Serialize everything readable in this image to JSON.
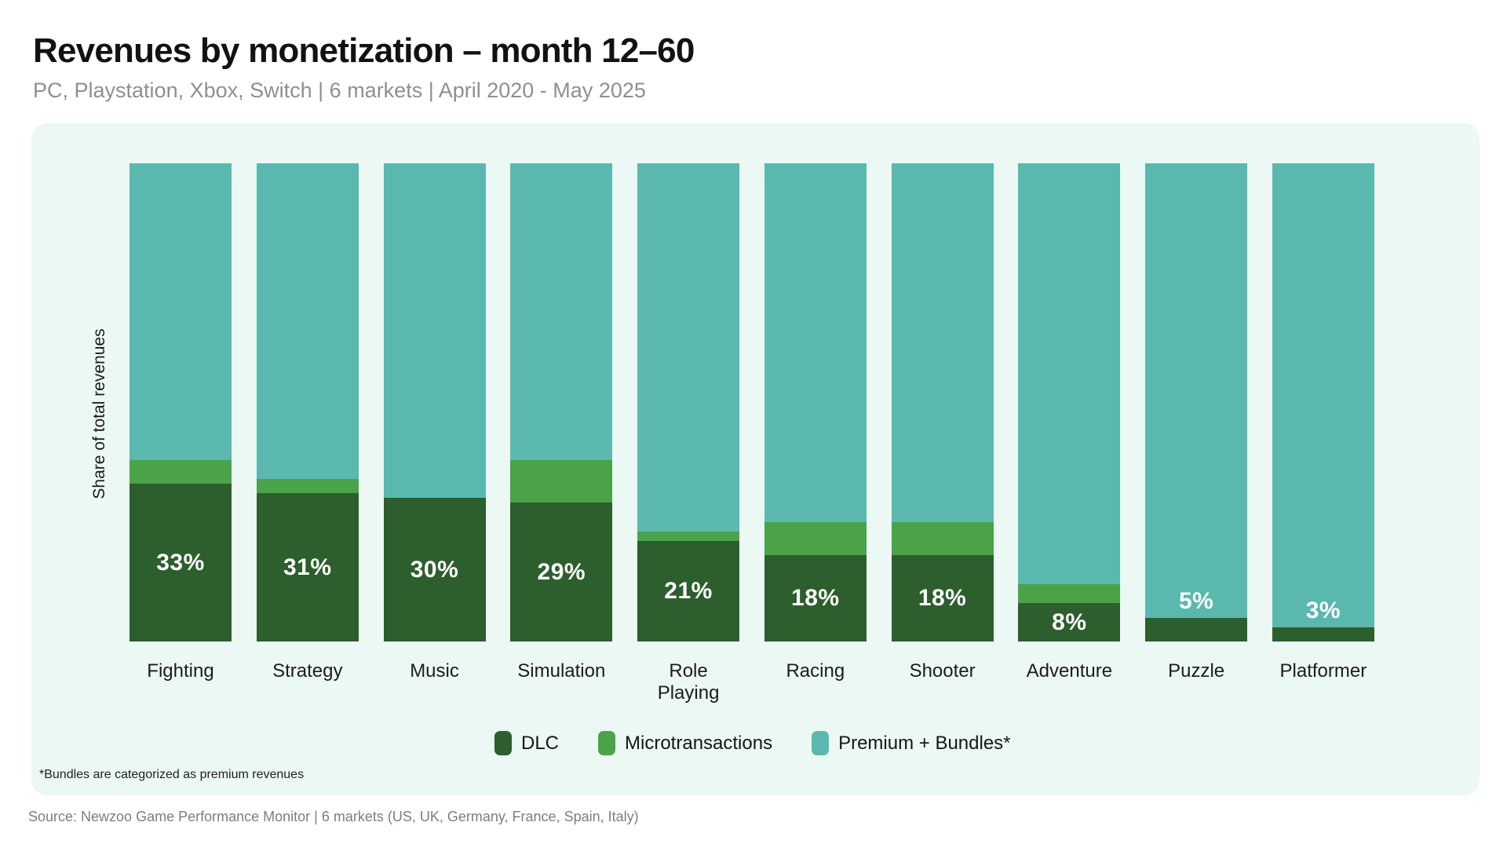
{
  "header": {
    "title": "Revenues by monetization – month 12–60",
    "subtitle": "PC, Playstation, Xbox, Switch | 6 markets | April 2020 - May 2025"
  },
  "colors": {
    "card_bg": "#ebf8f4",
    "dlc": "#2d5e2d",
    "microtransactions": "#4aa349",
    "premium_bundles": "#5bb8af",
    "bar_label_text": "#ffffff"
  },
  "chart_data": {
    "type": "bar",
    "stacked": true,
    "unit": "%",
    "title": "Revenues by monetization – month 12–60",
    "xlabel": "",
    "ylabel": "Share of total revenues",
    "ylim": [
      0,
      100
    ],
    "grid": false,
    "legend_position": "bottom",
    "categories": [
      "Fighting",
      "Strategy",
      "Music",
      "Simulation",
      "Role Playing",
      "Racing",
      "Shooter",
      "Adventure",
      "Puzzle",
      "Platformer"
    ],
    "series": [
      {
        "name": "DLC",
        "color": "#2d5e2d",
        "values": [
          33,
          31,
          30,
          29,
          21,
          18,
          18,
          8,
          5,
          3
        ]
      },
      {
        "name": "Microtransactions",
        "color": "#4aa349",
        "values": [
          5,
          3,
          0,
          9,
          2,
          7,
          7,
          4,
          0,
          0
        ]
      },
      {
        "name": "Premium + Bundles*",
        "color": "#5bb8af",
        "values": [
          62,
          66,
          70,
          62,
          77,
          75,
          75,
          88,
          95,
          97
        ]
      }
    ],
    "bar_labels": [
      "33%",
      "31%",
      "30%",
      "29%",
      "21%",
      "18%",
      "18%",
      "8%",
      "5%",
      "3%"
    ]
  },
  "footnote": "*Bundles are categorized as premium revenues",
  "source": "Source: Newzoo Game Performance Monitor | 6 markets (US, UK, Germany, France, Spain, Italy)"
}
